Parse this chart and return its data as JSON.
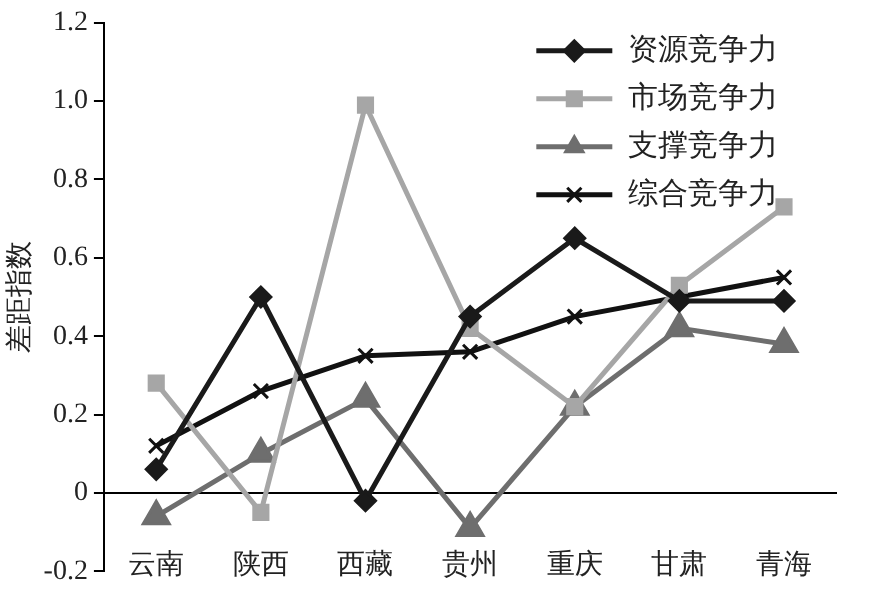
{
  "chart_data": {
    "type": "line",
    "ylabel": "差距指数",
    "categories": [
      "云南",
      "陕西",
      "西藏",
      "贵州",
      "重庆",
      "甘肃",
      "青海"
    ],
    "series": [
      {
        "name": "资源竞争力",
        "color": "#1a1a1a",
        "marker": "diamond",
        "values": [
          0.06,
          0.5,
          -0.02,
          0.45,
          0.65,
          0.49,
          0.49
        ]
      },
      {
        "name": "市场竞争力",
        "color": "#a6a6a6",
        "marker": "square",
        "values": [
          0.28,
          -0.05,
          0.99,
          0.42,
          0.22,
          0.53,
          0.73
        ]
      },
      {
        "name": "支撑竞争力",
        "color": "#6e6e6e",
        "marker": "triangle",
        "values": [
          -0.06,
          0.1,
          0.24,
          -0.09,
          0.22,
          0.42,
          0.38
        ]
      },
      {
        "name": "综合竞争力",
        "color": "#111111",
        "marker": "cross",
        "values": [
          0.12,
          0.26,
          0.35,
          0.36,
          0.45,
          0.5,
          0.55
        ]
      }
    ],
    "ylim": [
      -0.2,
      1.2
    ],
    "yticks": [
      {
        "value": -0.2,
        "label": "-0.2"
      },
      {
        "value": 0,
        "label": "0"
      },
      {
        "value": 0.2,
        "label": "0.2"
      },
      {
        "value": 0.4,
        "label": "0.4"
      },
      {
        "value": 0.6,
        "label": "0.6"
      },
      {
        "value": 0.8,
        "label": "0.8"
      },
      {
        "value": 1.0,
        "label": "1.0"
      },
      {
        "value": 1.2,
        "label": "1.2"
      }
    ],
    "grid": false,
    "legend": "top right"
  }
}
